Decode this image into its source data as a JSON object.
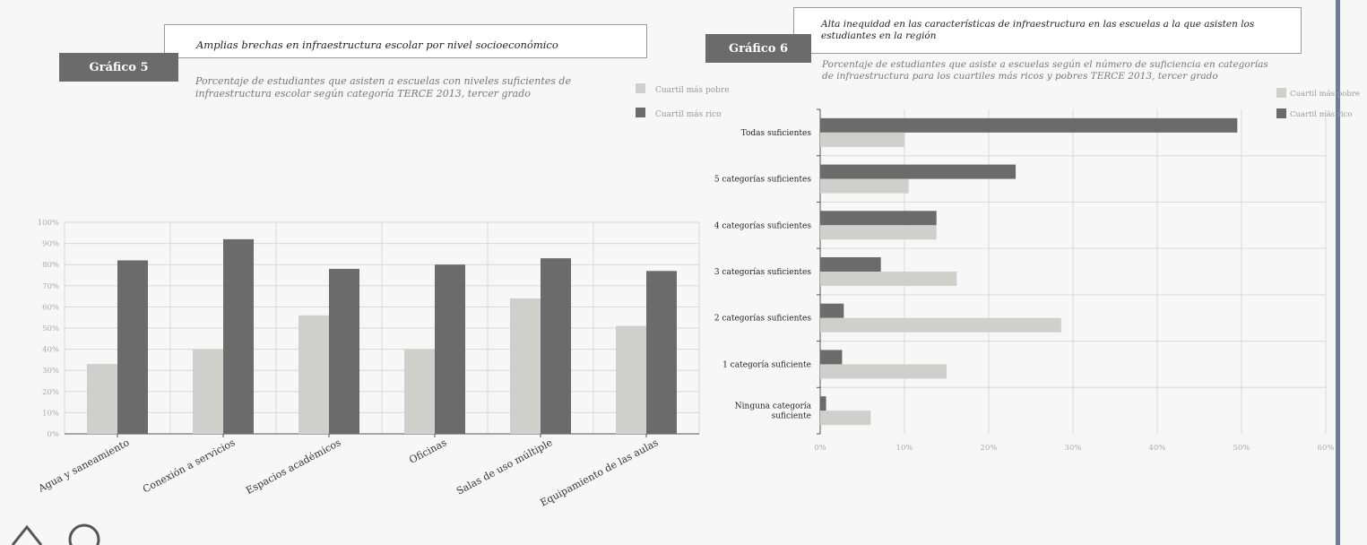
{
  "colors": {
    "poor": "#cfcfcb",
    "rich": "#6b6b6b",
    "grid": "#d8d8d8",
    "axis": "#555555"
  },
  "chart5": {
    "tab": "Gráfico 5",
    "title": "Amplias brechas en infraestructura escolar por nivel socioeconómico",
    "subtitle_lines": [
      "Porcentaje de estudiantes que asisten a escuelas con niveles suficientes de",
      "infraestructura escolar según categoría TERCE 2013, tercer grado"
    ],
    "legend": [
      "Cuartil más pobre",
      "Cuartil más rico"
    ]
  },
  "chart6": {
    "tab": "Gráfico 6",
    "title_lines": [
      "Alta inequidad en las características de infraestructura en las escuelas a la que asisten los",
      "estudiantes en la región"
    ],
    "subtitle_lines": [
      "Porcentaje de estudiantes que asiste a escuelas según el número de suficiencia en categorías",
      "de infraestructura para los cuartiles más ricos y pobres TERCE 2013, tercer grado"
    ],
    "legend": [
      "Cuartil más pobre",
      "Cuartil más rico"
    ]
  },
  "chart_data": [
    {
      "type": "bar",
      "title": "Amplias brechas en infraestructura escolar por nivel socioeconómico",
      "categories": [
        "Agua y saneamiento",
        "Conexión a servicios",
        "Espacios académicos",
        "Oficinas",
        "Salas de uso múltiple",
        "Equipamiento de las aulas"
      ],
      "series": [
        {
          "name": "Cuartil más pobre",
          "values": [
            33,
            40,
            56,
            40,
            64,
            51
          ]
        },
        {
          "name": "Cuartil más rico",
          "values": [
            82,
            92,
            78,
            80,
            83,
            77
          ]
        }
      ],
      "yticks": [
        "0%",
        "10%",
        "20%",
        "30%",
        "40%",
        "50%",
        "60%",
        "70%",
        "80%",
        "90%",
        "100%"
      ],
      "ylim": [
        0,
        100
      ],
      "grid": true,
      "legend_position": "top-right"
    },
    {
      "type": "bar",
      "orientation": "horizontal",
      "title": "Alta inequidad en las características de infraestructura en las escuelas a la que asisten los estudiantes en la región",
      "categories": [
        "Todas suficientes",
        "5 categorías suficientes",
        "4 categorías suficientes",
        "3 categorías suficientes",
        "2 categorías suficientes",
        "1 categoría suficiente",
        "Ninguna categoría suficiente"
      ],
      "category_lines": [
        [
          "Todas suficientes"
        ],
        [
          "5 categorías suficientes"
        ],
        [
          "4 categorías suficientes"
        ],
        [
          "3 categorías suficientes"
        ],
        [
          "2 categorías suficientes"
        ],
        [
          "1 categoría suficiente"
        ],
        [
          "Ninguna categoría",
          "suficiente"
        ]
      ],
      "series": [
        {
          "name": "Cuartil más pobre",
          "values": [
            10,
            10.5,
            13.8,
            16.2,
            28.6,
            15,
            6
          ]
        },
        {
          "name": "Cuartil más rico",
          "values": [
            49.5,
            23.2,
            13.8,
            7.2,
            2.8,
            2.6,
            0.7
          ]
        }
      ],
      "xticks": [
        "0%",
        "10%",
        "20%",
        "30%",
        "40%",
        "50%",
        "60%"
      ],
      "xlim": [
        0,
        60
      ],
      "grid": true,
      "legend_position": "top-right"
    }
  ]
}
